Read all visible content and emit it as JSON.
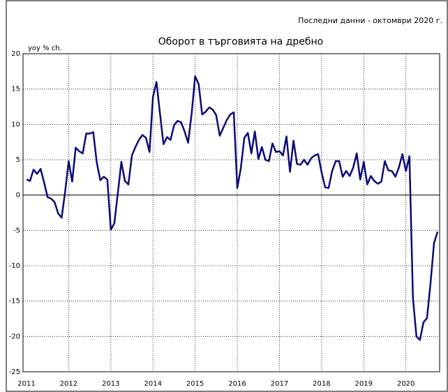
{
  "chart_data": {
    "type": "line",
    "title": "Оборот в търговията на дребно",
    "subtitle": "Последни данни - октомври 2020 г.",
    "y_label": "yoy % ch.",
    "categories": [
      "2011",
      null,
      null,
      null,
      null,
      null,
      null,
      null,
      null,
      null,
      null,
      null,
      "2012",
      null,
      null,
      null,
      null,
      null,
      null,
      null,
      null,
      null,
      null,
      null,
      "2013",
      null,
      null,
      null,
      null,
      null,
      null,
      null,
      null,
      null,
      null,
      null,
      "2014",
      null,
      null,
      null,
      null,
      null,
      null,
      null,
      null,
      null,
      null,
      null,
      "2015",
      null,
      null,
      null,
      null,
      null,
      null,
      null,
      null,
      null,
      null,
      null,
      "2016",
      null,
      null,
      null,
      null,
      null,
      null,
      null,
      null,
      null,
      null,
      null,
      "2017",
      null,
      null,
      null,
      null,
      null,
      null,
      null,
      null,
      null,
      null,
      null,
      "2018",
      null,
      null,
      null,
      null,
      null,
      null,
      null,
      null,
      null,
      null,
      null,
      "2019",
      null,
      null,
      null,
      null,
      null,
      null,
      null,
      null,
      null,
      null,
      null,
      "2020",
      null,
      null,
      null,
      null,
      null,
      null,
      null,
      null,
      null
    ],
    "series": [
      {
        "color": "#0a0a7a",
        "values": [
          2.2,
          2.0,
          3.6,
          3.0,
          3.7,
          1.8,
          -0.3,
          -0.5,
          -1.0,
          -2.6,
          -3.2,
          0.5,
          4.8,
          1.9,
          6.7,
          6.2,
          5.9,
          8.7,
          8.7,
          8.9,
          4.6,
          2.1,
          2.6,
          2.2,
          -4.9,
          -4.0,
          0.3,
          4.7,
          2.0,
          1.5,
          5.6,
          6.8,
          7.8,
          8.5,
          8.1,
          6.1,
          13.9,
          16.0,
          11.5,
          7.2,
          8.2,
          7.8,
          9.9,
          10.5,
          10.3,
          9.0,
          7.4,
          11.5,
          16.8,
          15.7,
          11.4,
          11.8,
          12.4,
          12.1,
          11.3,
          8.4,
          9.5,
          10.6,
          11.4,
          11.7,
          1.0,
          3.8,
          8.1,
          8.8,
          5.9,
          9.0,
          5.1,
          6.8,
          5.0,
          4.8,
          7.3,
          6.1,
          6.2,
          5.6,
          8.3,
          3.3,
          7.7,
          4.4,
          4.3,
          5.0,
          4.3,
          5.2,
          5.6,
          5.8,
          3.2,
          1.1,
          1.0,
          3.4,
          4.8,
          4.8,
          2.6,
          3.4,
          2.7,
          3.9,
          5.9,
          2.2,
          4.7,
          1.5,
          2.7,
          2.0,
          1.6,
          1.9,
          4.8,
          3.5,
          3.4,
          2.6,
          3.9,
          5.8,
          3.4,
          5.5,
          -14.6,
          -20.0,
          -20.5,
          -18.0,
          -17.4,
          -12.5,
          -6.8,
          -5.2
        ]
      }
    ],
    "ylim": [
      -25,
      20
    ],
    "yticks": [
      -25,
      -20,
      -15,
      -10,
      -5,
      0,
      5,
      10,
      15,
      20
    ],
    "grid": true
  }
}
